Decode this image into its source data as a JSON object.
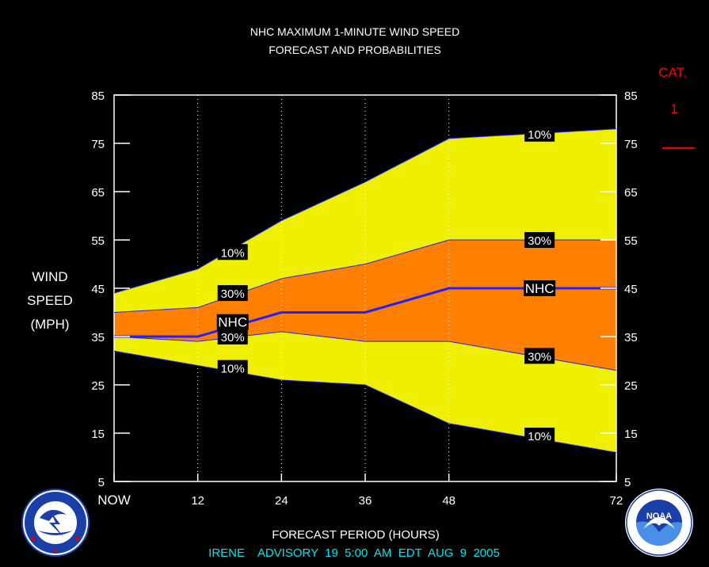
{
  "title": {
    "line1": "NHC MAXIMUM 1-MINUTE WIND SPEED",
    "line2": "FORECAST AND PROBABILITIES"
  },
  "ylabel": [
    "WIND",
    "SPEED",
    "(MPH)"
  ],
  "xlabel": "FORECAST PERIOD (HOURS)",
  "advisory": "IRENE    ADVISORY  19  5:00  AM  EDT  AUG  9  2005",
  "category": {
    "label": "CAT.",
    "value": "1"
  },
  "logos": {
    "left": "NATIONAL WEATHER SERVICE",
    "right": "NOAA",
    "right_ring": "NATIONAL OCEANIC AND ATMOSPHERIC ADMINISTRATION U.S. DEPARTMENT OF COMMERCE"
  },
  "colors": {
    "background": "#000000",
    "band10": "#eef000",
    "band30": "#ff8000",
    "nhc": "#2020ff",
    "category": "#ff0000",
    "advisory": "#00e5ee",
    "label_box": "#000000"
  },
  "chart_data": {
    "type": "area",
    "x": [
      0,
      12,
      24,
      36,
      48,
      72
    ],
    "x_tick_labels": [
      "NOW",
      "12",
      "24",
      "36",
      "48",
      "72"
    ],
    "xlim": [
      0,
      72
    ],
    "ylim": [
      5,
      85
    ],
    "y_ticks": [
      5,
      15,
      25,
      35,
      45,
      55,
      65,
      75,
      85
    ],
    "grid": "dotted vertical lines at 12, 24, 36, 48",
    "series": [
      {
        "name": "10%",
        "role": "upper",
        "values": [
          44,
          49,
          59,
          67,
          76,
          78
        ]
      },
      {
        "name": "30%",
        "role": "upper",
        "values": [
          40,
          41,
          47,
          50,
          55,
          55
        ]
      },
      {
        "name": "NHC",
        "role": "forecast",
        "values": [
          35,
          35,
          40,
          40,
          45,
          45
        ]
      },
      {
        "name": "30%",
        "role": "lower",
        "values": [
          35,
          34,
          36,
          34,
          34,
          28
        ]
      },
      {
        "name": "10%",
        "role": "lower",
        "values": [
          32,
          29,
          26,
          25,
          17,
          11
        ]
      }
    ],
    "category_thresholds": [
      {
        "label": "1",
        "value": 74
      }
    ],
    "labels": [
      {
        "text": "10%",
        "x": 17,
        "y": 52.5
      },
      {
        "text": "30%",
        "x": 17,
        "y": 44
      },
      {
        "text": "NHC",
        "x": 17,
        "y": 38
      },
      {
        "text": "30%",
        "x": 17,
        "y": 35
      },
      {
        "text": "10%",
        "x": 17,
        "y": 28.5
      },
      {
        "text": "10%",
        "x": 61,
        "y": 77
      },
      {
        "text": "30%",
        "x": 61,
        "y": 55
      },
      {
        "text": "NHC",
        "x": 61,
        "y": 45
      },
      {
        "text": "30%",
        "x": 61,
        "y": 31
      },
      {
        "text": "10%",
        "x": 61,
        "y": 14.5
      }
    ]
  }
}
